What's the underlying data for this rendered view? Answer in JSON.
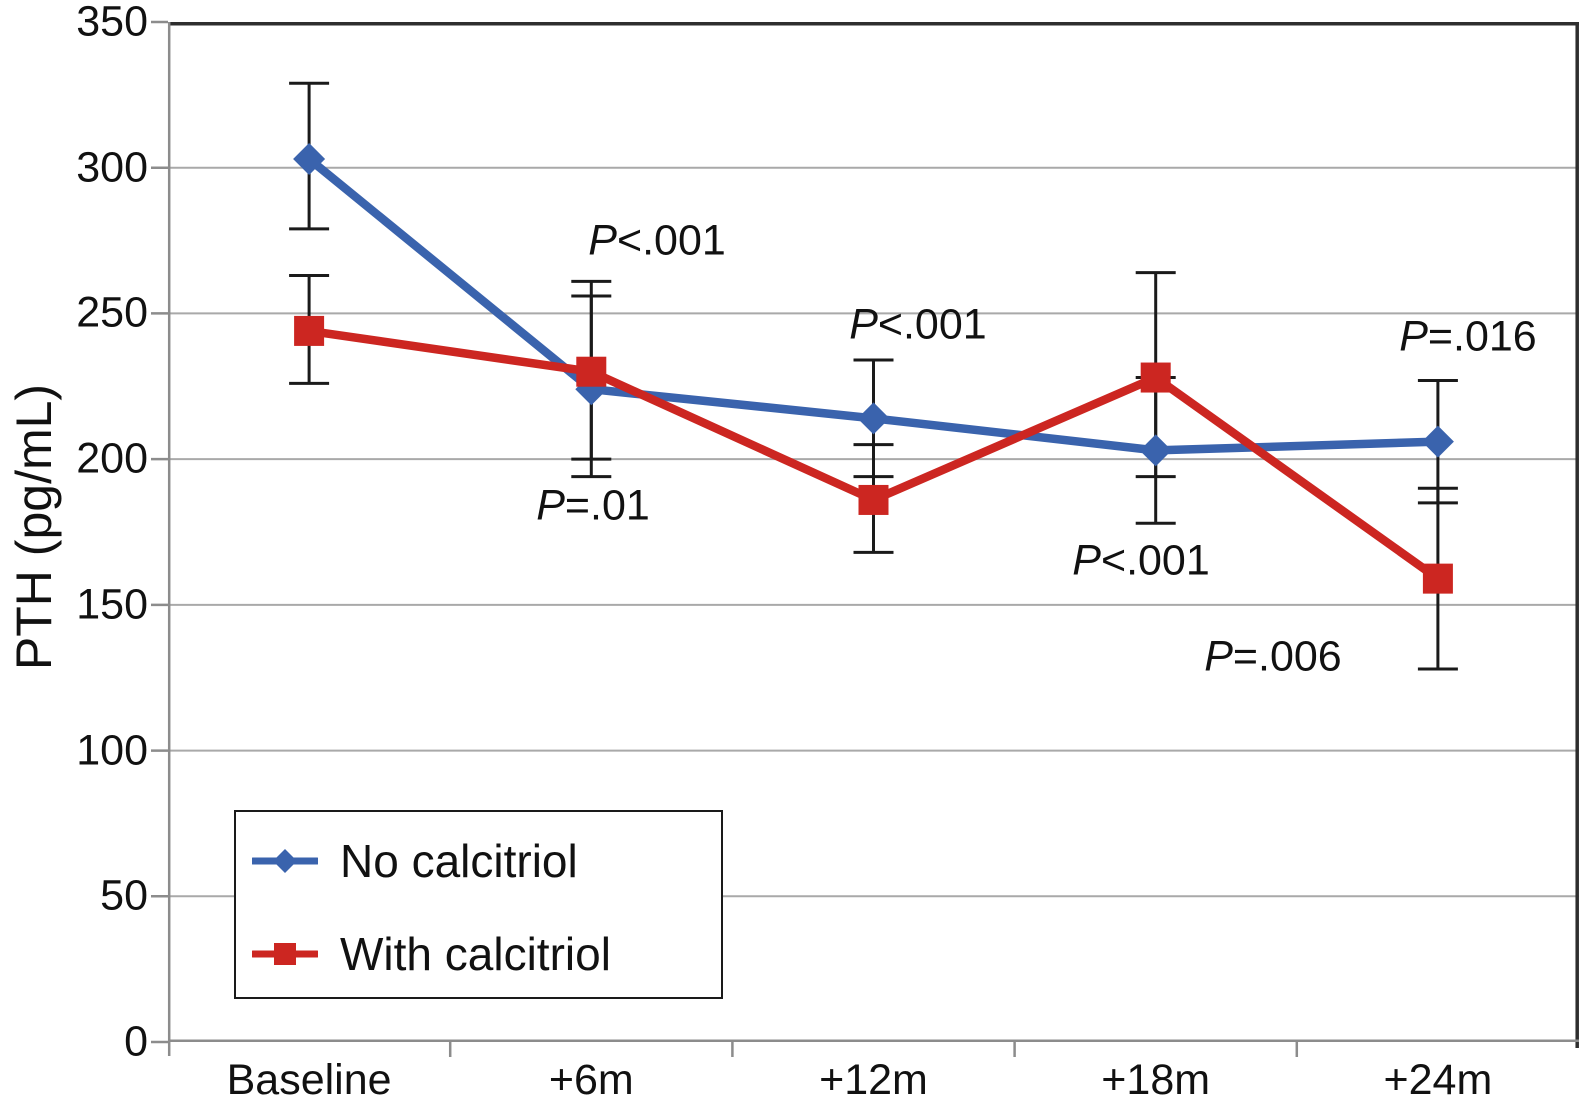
{
  "figure": {
    "background": "#ffffff",
    "grid_color": "#a9a9a9",
    "axis_color": "#8c8c8c",
    "border_color": "#2e2e2e",
    "errorbar_color": "#1a1a1a"
  },
  "chart_data": {
    "type": "line",
    "title": "",
    "xlabel": "",
    "ylabel": "PTH (pg/mL)",
    "ylim": [
      0,
      350
    ],
    "yticks": [
      0,
      50,
      100,
      150,
      200,
      250,
      300,
      350
    ],
    "grid": true,
    "legend_position": "bottom-left",
    "categories": [
      "Baseline",
      "+6m",
      "+12m",
      "+18m",
      "+24m"
    ],
    "series": [
      {
        "name": "No calcitriol",
        "color": "#3a63ad",
        "marker": "diamond",
        "values": [
          303,
          224,
          214,
          203,
          206
        ],
        "err_low": [
          279,
          194,
          194,
          178,
          185
        ],
        "err_high": [
          329,
          256,
          234,
          228,
          227
        ]
      },
      {
        "name": "With calcitriol",
        "color": "#cc2621",
        "marker": "square",
        "values": [
          244,
          230,
          186,
          228,
          159
        ],
        "err_low": [
          226,
          200,
          168,
          194,
          128
        ],
        "err_high": [
          263,
          261,
          205,
          264,
          190
        ]
      }
    ],
    "annotations": [
      {
        "text": "P<.001",
        "xf": 0.3466,
        "value": 275
      },
      {
        "text": "P=.01",
        "xf": 0.3012,
        "value": 184
      },
      {
        "text": "P<.001",
        "xf": 0.5315,
        "value": 246
      },
      {
        "text": "P<.001",
        "xf": 0.6896,
        "value": 165
      },
      {
        "text": "P=.006",
        "xf": 0.7831,
        "value": 132
      },
      {
        "text": "P=.016",
        "xf": 0.9213,
        "value": 242
      }
    ]
  }
}
